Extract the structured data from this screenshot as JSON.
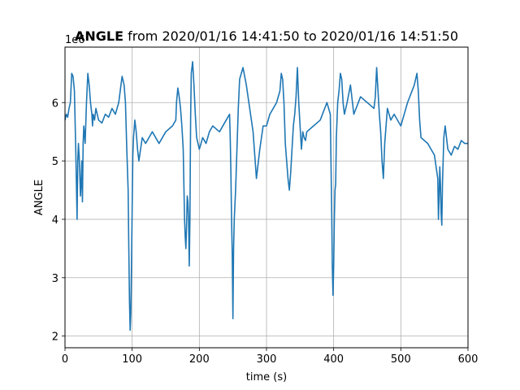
{
  "chart_data": {
    "type": "line",
    "title": {
      "bold": "ANGLE",
      "rest": " from 2020/01/16 14:41:50 to 2020/01/16 14:51:50"
    },
    "xlabel": "time (s)",
    "ylabel": "ANGLE",
    "y_offset_text": "1e6",
    "xlim": [
      0,
      600
    ],
    "ylim": [
      1.8,
      6.95
    ],
    "y_scale_note": "values in units of 1e6",
    "xticks": [
      0,
      100,
      200,
      300,
      400,
      500,
      600
    ],
    "yticks": [
      2,
      3,
      4,
      5,
      6
    ],
    "xtick_labels": [
      "0",
      "100",
      "200",
      "300",
      "400",
      "500",
      "600"
    ],
    "ytick_labels": [
      "2",
      "3",
      "4",
      "5",
      "6"
    ],
    "grid": true,
    "line_color": "#1f77b4",
    "series": [
      {
        "x": [
          0,
          2,
          4,
          6,
          8,
          10,
          12,
          14,
          16,
          17,
          18,
          19,
          20,
          21,
          22,
          23,
          24,
          25,
          26,
          27,
          28,
          30,
          32,
          34,
          36,
          38,
          40,
          41,
          42,
          44,
          46,
          48,
          50,
          55,
          60,
          65,
          70,
          75,
          80,
          85,
          88,
          90,
          92,
          94,
          95,
          96,
          97,
          98,
          99,
          100,
          101,
          102,
          104,
          106,
          108,
          110,
          115,
          120,
          125,
          130,
          140,
          150,
          160,
          165,
          166,
          168,
          170,
          172,
          174,
          176,
          177,
          178,
          179,
          180,
          181,
          182,
          183,
          184,
          185,
          186,
          187,
          188,
          190,
          192,
          194,
          196,
          198,
          200,
          205,
          210,
          215,
          220,
          230,
          240,
          245,
          246,
          247,
          248,
          249,
          250,
          251,
          252,
          254,
          256,
          258,
          260,
          265,
          270,
          275,
          280,
          285,
          290,
          295,
          300,
          305,
          310,
          315,
          320,
          322,
          324,
          326,
          328,
          330,
          332,
          334,
          336,
          338,
          340,
          342,
          344,
          346,
          348,
          350,
          352,
          354,
          356,
          358,
          360,
          370,
          380,
          390,
          395,
          396,
          397,
          398,
          399,
          400,
          401,
          402,
          403,
          404,
          406,
          408,
          410,
          412,
          414,
          416,
          418,
          420,
          425,
          430,
          440,
          450,
          460,
          462,
          464,
          466,
          468,
          470,
          472,
          474,
          476,
          478,
          480,
          485,
          490,
          500,
          510,
          520,
          524,
          526,
          528,
          530,
          540,
          550,
          555,
          556,
          557,
          558,
          559,
          560,
          561,
          562,
          564,
          566,
          568,
          570,
          575,
          580,
          585,
          590,
          595,
          600
        ],
        "y": [
          5.7,
          5.8,
          5.75,
          5.9,
          6.0,
          6.5,
          6.45,
          6.2,
          5.2,
          4.6,
          4.0,
          5.0,
          5.3,
          5.1,
          4.8,
          4.4,
          4.6,
          5.0,
          4.3,
          5.3,
          5.6,
          5.3,
          6.0,
          6.5,
          6.3,
          6.0,
          5.8,
          5.6,
          5.8,
          5.7,
          5.9,
          5.8,
          5.7,
          5.65,
          5.8,
          5.75,
          5.9,
          5.8,
          6.0,
          6.45,
          6.3,
          6.0,
          5.2,
          4.5,
          3.5,
          2.6,
          2.1,
          2.4,
          3.2,
          4.2,
          5.1,
          5.4,
          5.7,
          5.5,
          5.2,
          5.0,
          5.4,
          5.3,
          5.4,
          5.5,
          5.3,
          5.5,
          5.6,
          5.7,
          6.0,
          6.25,
          6.1,
          5.9,
          5.6,
          5.2,
          4.6,
          4.0,
          3.7,
          3.5,
          3.9,
          4.4,
          4.3,
          4.0,
          3.2,
          4.0,
          5.7,
          6.5,
          6.7,
          6.3,
          5.8,
          5.4,
          5.3,
          5.2,
          5.4,
          5.3,
          5.5,
          5.6,
          5.5,
          5.7,
          5.8,
          5.4,
          4.8,
          4.0,
          3.4,
          2.3,
          3.5,
          4.0,
          4.5,
          5.2,
          5.9,
          6.4,
          6.6,
          6.3,
          5.9,
          5.5,
          4.7,
          5.2,
          5.6,
          5.6,
          5.8,
          5.9,
          6.0,
          6.2,
          6.5,
          6.4,
          6.0,
          5.3,
          5.0,
          4.7,
          4.5,
          4.8,
          5.2,
          5.6,
          5.8,
          6.1,
          6.6,
          6.0,
          5.6,
          5.2,
          5.5,
          5.4,
          5.35,
          5.5,
          5.6,
          5.7,
          6.0,
          5.8,
          5.0,
          4.2,
          3.2,
          2.7,
          3.2,
          4.0,
          4.5,
          4.6,
          5.4,
          6.0,
          6.2,
          6.5,
          6.4,
          6.0,
          5.8,
          5.9,
          6.0,
          6.3,
          5.8,
          6.1,
          6.0,
          5.9,
          6.1,
          6.6,
          6.2,
          5.8,
          5.5,
          5.0,
          4.7,
          5.3,
          5.6,
          5.9,
          5.7,
          5.8,
          5.6,
          6.0,
          6.3,
          6.5,
          6.2,
          5.7,
          5.4,
          5.3,
          5.1,
          4.7,
          4.0,
          4.4,
          4.9,
          4.6,
          4.1,
          3.9,
          4.6,
          5.4,
          5.6,
          5.4,
          5.2,
          5.1,
          5.25,
          5.2,
          5.35,
          5.3,
          5.3
        ]
      }
    ]
  }
}
